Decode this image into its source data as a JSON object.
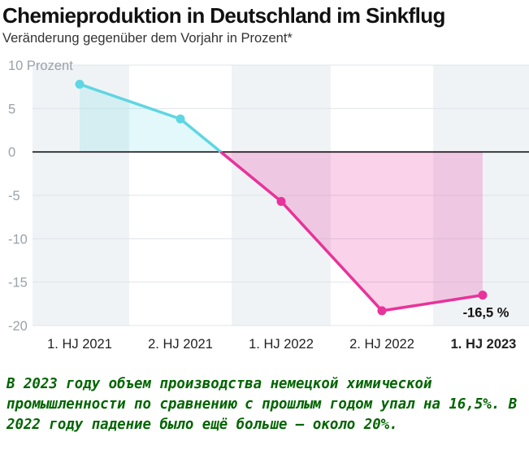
{
  "header": {
    "title": "Chemieproduktion in Deutschland im Sinkflug",
    "subtitle": "Veränderung gegenüber dem Vorjahr in Prozent*"
  },
  "chart_data": {
    "type": "line",
    "title": "Chemieproduktion in Deutschland im Sinkflug",
    "subtitle": "Veränderung gegenüber dem Vorjahr in Prozent*",
    "xlabel": "",
    "ylabel": "",
    "categories": [
      "1. HJ 2021",
      "2. HJ 2021",
      "1. HJ 2022",
      "2. HJ 2022",
      "1. HJ 2023"
    ],
    "highlighted_category": "1. HJ 2023",
    "series": [
      {
        "values": [
          7.8,
          3.8,
          -5.7,
          -18.3,
          -16.5
        ]
      }
    ],
    "ylim": [
      -20,
      10
    ],
    "yticks": [
      10,
      5,
      0,
      -5,
      -10,
      -15,
      -20
    ],
    "ytick_labels": [
      "10 Prozent",
      "5",
      "0",
      "-5",
      "-10",
      "-15",
      "-20"
    ],
    "data_labels": [
      {
        "category": "1. HJ 2023",
        "text": "-16,5 %"
      }
    ],
    "colors": {
      "positive": "#5fd6e3",
      "negative": "#e8339a"
    },
    "grid": true
  },
  "caption": {
    "text": "В 2023 году объем производства немецкой химической промышленности по сравнению с прошлым годом упал на 16,5%. В 2022 году падение было ещё больше — около 20%."
  }
}
